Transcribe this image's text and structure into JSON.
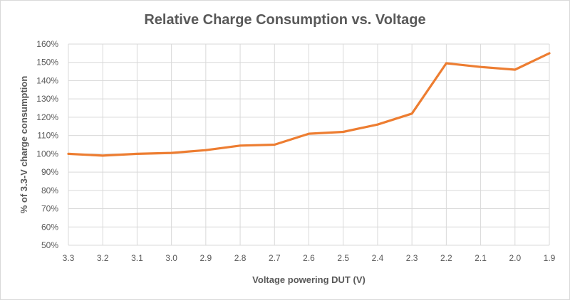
{
  "chart_data": {
    "type": "line",
    "title": "Relative Charge Consumption vs. Voltage",
    "xlabel": "Voltage powering DUT  (V)",
    "ylabel": "% of 3.3-V charge consumption",
    "categories": [
      "3.3",
      "3.2",
      "3.1",
      "3.0",
      "2.9",
      "2.8",
      "2.7",
      "2.6",
      "2.5",
      "2.4",
      "2.3",
      "2.2",
      "2.1",
      "2.0",
      "1.9"
    ],
    "series": [
      {
        "values": [
          100,
          99,
          100,
          100.5,
          102,
          104.5,
          105,
          111,
          112,
          116,
          122,
          149.5,
          147.5,
          146,
          155
        ],
        "color": "#ED7D31"
      }
    ],
    "ylim": [
      50,
      160
    ],
    "yticks": [
      50,
      60,
      70,
      80,
      90,
      100,
      110,
      120,
      130,
      140,
      150,
      160
    ],
    "ytick_format": "percent",
    "grid": true,
    "legend": "none",
    "colors": {
      "grid": "#d9d9d9",
      "text": "#595959",
      "line": "#ED7D31"
    }
  }
}
